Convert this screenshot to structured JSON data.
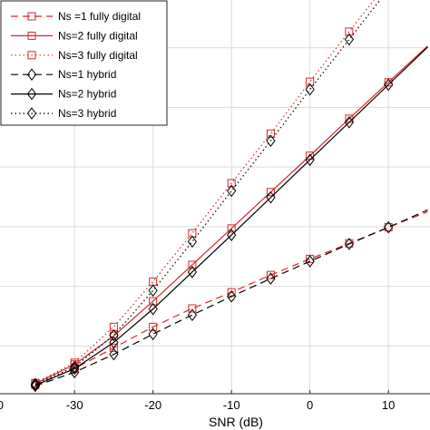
{
  "chart_data": {
    "type": "line",
    "xlabel": "SNR (dB)",
    "ylabel": "",
    "title": "",
    "grid": true,
    "legend_position": "top-left",
    "xlim": [
      -39.5,
      15.3
    ],
    "ylim": [
      0.2,
      6.8
    ],
    "xticks": [
      -30,
      -20,
      -10,
      0,
      10
    ],
    "xtick_labels": [
      "-30",
      "-20",
      "-10",
      "0",
      "10"
    ],
    "partial_tick_label": "0",
    "yticks": [
      1,
      2,
      3,
      4,
      5,
      6
    ],
    "x": [
      -35,
      -30,
      -25,
      -20,
      -15,
      -10,
      -5,
      0,
      5,
      10,
      15
    ],
    "series": [
      {
        "name": "Ns =1 fully digital",
        "color": "#d62728",
        "linestyle": "dashed",
        "marker": "square",
        "marker_x": [
          -35,
          -30,
          -25,
          -20,
          -15,
          -10,
          -5,
          0,
          5,
          10
        ],
        "values": [
          0.35,
          0.62,
          0.97,
          1.32,
          1.63,
          1.9,
          2.19,
          2.46,
          2.72,
          2.99,
          3.25
        ]
      },
      {
        "name": "Ns=2 fully digital",
        "color": "#d62728",
        "linestyle": "solid",
        "marker": "square",
        "marker_x": [
          -35,
          -30,
          -25,
          -20,
          -15,
          -10,
          -5,
          0,
          5,
          10
        ],
        "values": [
          0.37,
          0.69,
          1.17,
          1.75,
          2.36,
          2.97,
          3.58,
          4.19,
          4.81,
          5.42,
          6.03
        ]
      },
      {
        "name": "Ns=3 fully digital",
        "color": "#d62728",
        "linestyle": "dotted",
        "marker": "square",
        "marker_x": [
          -35,
          -30,
          -25,
          -20,
          -15,
          -10,
          -5,
          0,
          5,
          10
        ],
        "values": [
          0.38,
          0.72,
          1.32,
          2.08,
          2.89,
          3.73,
          4.56,
          5.43,
          6.27,
          7.11,
          7.95
        ]
      },
      {
        "name": "Ns=1 hybrid",
        "color": "#000000",
        "linestyle": "dashed",
        "marker": "diamond",
        "marker_x": [
          -35,
          -30,
          -25,
          -20,
          -15,
          -10,
          -5,
          0,
          5,
          10
        ],
        "values": [
          0.33,
          0.56,
          0.86,
          1.2,
          1.52,
          1.83,
          2.13,
          2.42,
          2.71,
          2.99,
          3.28
        ]
      },
      {
        "name": "Ns=2 hybrid",
        "color": "#000000",
        "linestyle": "solid",
        "marker": "diamond",
        "marker_x": [
          -35,
          -30,
          -25,
          -20,
          -15,
          -10,
          -5,
          0,
          5,
          10
        ],
        "values": [
          0.34,
          0.62,
          1.06,
          1.62,
          2.24,
          2.86,
          3.49,
          4.12,
          4.75,
          5.38,
          6.01
        ]
      },
      {
        "name": "Ns=3 hybrid",
        "color": "#000000",
        "linestyle": "dotted",
        "marker": "diamond",
        "marker_x": [
          -35,
          -30,
          -25,
          -20,
          -15,
          -10,
          -5,
          0,
          5,
          10
        ],
        "values": [
          0.36,
          0.65,
          1.18,
          1.93,
          2.75,
          3.6,
          4.44,
          5.3,
          6.14,
          6.98,
          7.82
        ]
      }
    ]
  }
}
